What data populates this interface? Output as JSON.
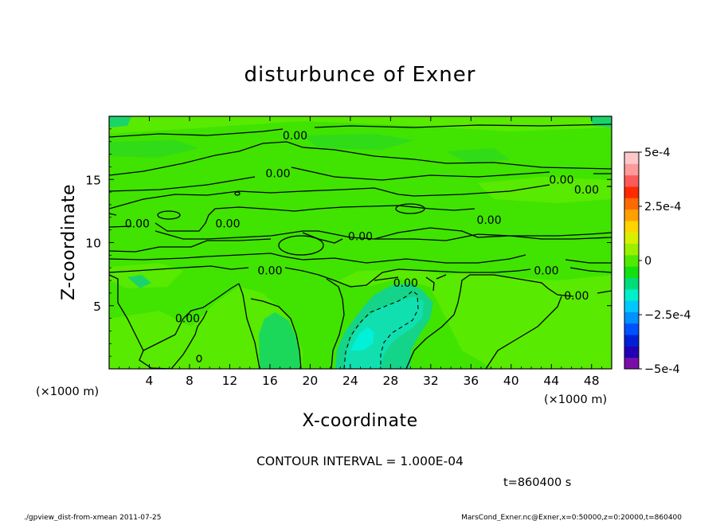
{
  "chart_data": {
    "type": "heatmap",
    "title": "disturbunce of Exner",
    "xlabel": "X-coordinate",
    "ylabel": "Z-coordinate",
    "x_unit_label": "(×1000 m)",
    "x_unit_label_right": "(×1000 m)",
    "xlim": [
      0,
      50
    ],
    "ylim": [
      0,
      20
    ],
    "x_ticks": [
      4,
      8,
      12,
      16,
      20,
      24,
      28,
      32,
      36,
      40,
      44,
      48
    ],
    "y_ticks": [
      5,
      10,
      15
    ],
    "contour_interval_text": "CONTOUR INTERVAL = 1.000E-04",
    "time_text": "t=860400 s",
    "contour_label": "0.00",
    "contour_labels": [
      {
        "x": 18.5,
        "z": 18.5,
        "text": "0.00"
      },
      {
        "x": 16.8,
        "z": 15.5,
        "text": "0.00"
      },
      {
        "x": 45.0,
        "z": 15.0,
        "text": "0.00"
      },
      {
        "x": 47.5,
        "z": 14.2,
        "text": "0.00"
      },
      {
        "x": 2.8,
        "z": 11.5,
        "text": "0.00"
      },
      {
        "x": 11.8,
        "z": 11.5,
        "text": "0.00"
      },
      {
        "x": 25.0,
        "z": 10.5,
        "text": "0.00"
      },
      {
        "x": 37.8,
        "z": 11.8,
        "text": "0.00"
      },
      {
        "x": 16.0,
        "z": 7.8,
        "text": "0.00"
      },
      {
        "x": 43.5,
        "z": 7.8,
        "text": "0.00"
      },
      {
        "x": 29.5,
        "z": 6.8,
        "text": "0.00"
      },
      {
        "x": 46.5,
        "z": 5.8,
        "text": "0.00"
      },
      {
        "x": 7.8,
        "z": 4.0,
        "text": "0.00"
      }
    ],
    "colorbar": {
      "range": [
        -0.0005,
        0.0005
      ],
      "tick_labels": [
        "5e-4",
        "2.5e-4",
        "0",
        "−2.5e-4",
        "−5e-4"
      ],
      "tick_values": [
        0.0005,
        0.00025,
        0,
        -0.00025,
        -0.0005
      ],
      "colors": [
        "#7a0fa8",
        "#2200b4",
        "#0020d6",
        "#0050ff",
        "#0090ff",
        "#00c8ff",
        "#00f0c8",
        "#00dc78",
        "#12e012",
        "#50ea00",
        "#9bf000",
        "#d8f000",
        "#ffd400",
        "#ffa000",
        "#ff6a00",
        "#ff2a00",
        "#ff5a5a",
        "#ff9a9a",
        "#ffc8c8"
      ]
    },
    "field_regions": [
      {
        "x": [
          22.3,
          27.5
        ],
        "z": [
          0,
          6.0
        ],
        "value": -0.00015
      },
      {
        "x": [
          23.5,
          26.0
        ],
        "z": [
          1.8,
          3.6
        ],
        "value": -0.00022
      },
      {
        "x": [
          15.2,
          18.8
        ],
        "z": [
          0,
          4.6
        ],
        "value": -5e-05
      },
      {
        "x": 0,
        "z": 0,
        "value": 0
      }
    ]
  },
  "footer": {
    "left": "./gpview_dist-from-xmean  2011-07-25",
    "right": "MarsCond_Exner.nc@Exner,x=0:50000,z=0:20000,t=860400"
  }
}
